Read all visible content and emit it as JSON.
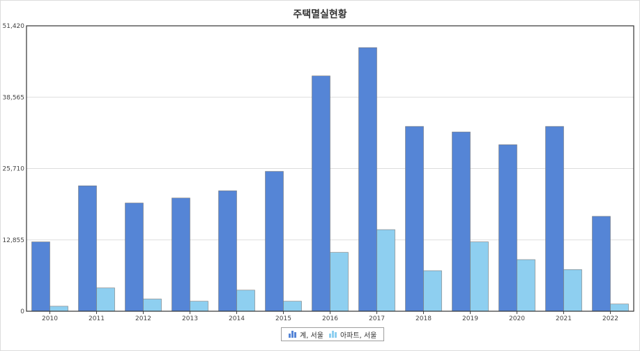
{
  "chart_data": {
    "type": "bar",
    "title": "주택멸실현황",
    "categories": [
      "2010",
      "2011",
      "2012",
      "2013",
      "2014",
      "2015",
      "2016",
      "2017",
      "2018",
      "2019",
      "2020",
      "2021",
      "2022"
    ],
    "series": [
      {
        "name": "계, 서울",
        "color": "#5585d6",
        "values": [
          12500,
          22600,
          19500,
          20400,
          21700,
          25200,
          42400,
          47500,
          33300,
          32300,
          30000,
          33300,
          17100
        ]
      },
      {
        "name": "아파트, 서울",
        "color": "#8ecff0",
        "values": [
          900,
          4200,
          2200,
          1800,
          3800,
          1800,
          10600,
          14700,
          7300,
          12500,
          9300,
          7500,
          1300
        ]
      }
    ],
    "y_ticks": [
      "0",
      "12,855",
      "25,710",
      "38,565",
      "51,420"
    ],
    "ylim": [
      0,
      51420
    ],
    "grid": true,
    "legend_position": "bottom-center"
  }
}
